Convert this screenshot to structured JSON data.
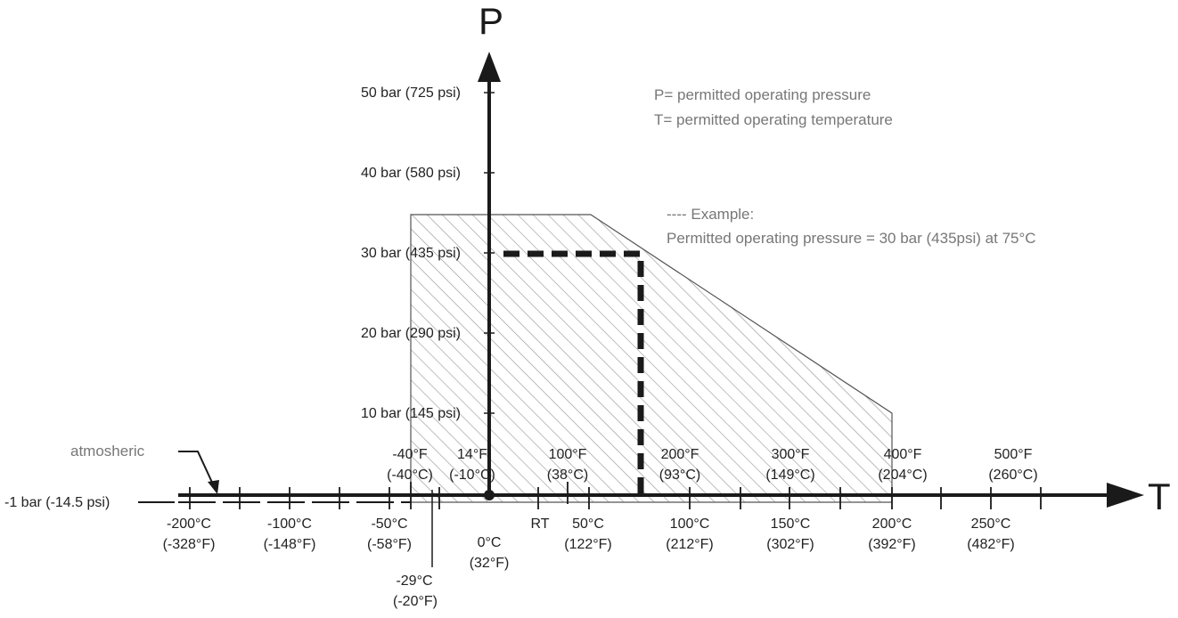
{
  "diagram": {
    "axis_p": "P",
    "axis_t": "T",
    "legend": {
      "line1": "P= permitted operating pressure",
      "line2": "T= permitted operating temperature"
    },
    "example": {
      "line1": "---- Example:",
      "line2": "Permitted operating pressure = 30 bar (435psi) at 75°C"
    },
    "pressure_labels": [
      "50 bar (725 psi)",
      "40 bar (580 psi)",
      "30 bar (435 psi)",
      "20 bar (290 psi)",
      "10 bar (145 psi)"
    ],
    "vacuum_label": "-1 bar (-14.5 psi)",
    "atmos_label": "atmosheric",
    "fahrenheit_top": [
      {
        "f": "-40°F",
        "c": "(-40°C)"
      },
      {
        "f": "14°F",
        "c": "(-10°C)"
      },
      {
        "f": "100°F",
        "c": "(38°C)"
      },
      {
        "f": "200°F",
        "c": "(93°C)"
      },
      {
        "f": "300°F",
        "c": "(149°C)"
      },
      {
        "f": "400°F",
        "c": "(204°C)"
      },
      {
        "f": "500°F",
        "c": "(260°C)"
      }
    ],
    "celsius_bottom": [
      {
        "c": "-200°C",
        "f": "(-328°F)"
      },
      {
        "c": "-100°C",
        "f": "(-148°F)"
      },
      {
        "c": "-50°C",
        "f": "(-58°F)"
      },
      {
        "c": "0°C",
        "f": "(32°F)"
      },
      {
        "c": "RT",
        "f": ""
      },
      {
        "c": "50°C",
        "f": "(122°F)"
      },
      {
        "c": "100°C",
        "f": "(212°F)"
      },
      {
        "c": "150°C",
        "f": "(302°F)"
      },
      {
        "c": "200°C",
        "f": "(392°F)"
      },
      {
        "c": "250°C",
        "f": "(482°F)"
      }
    ],
    "low_limit": {
      "c": "-29°C",
      "f": "(-20°F)"
    },
    "colors": {
      "axis": "#1a1a1a",
      "hatch": "#9a9a9a",
      "text": "#222222",
      "muted": "#777777"
    }
  }
}
